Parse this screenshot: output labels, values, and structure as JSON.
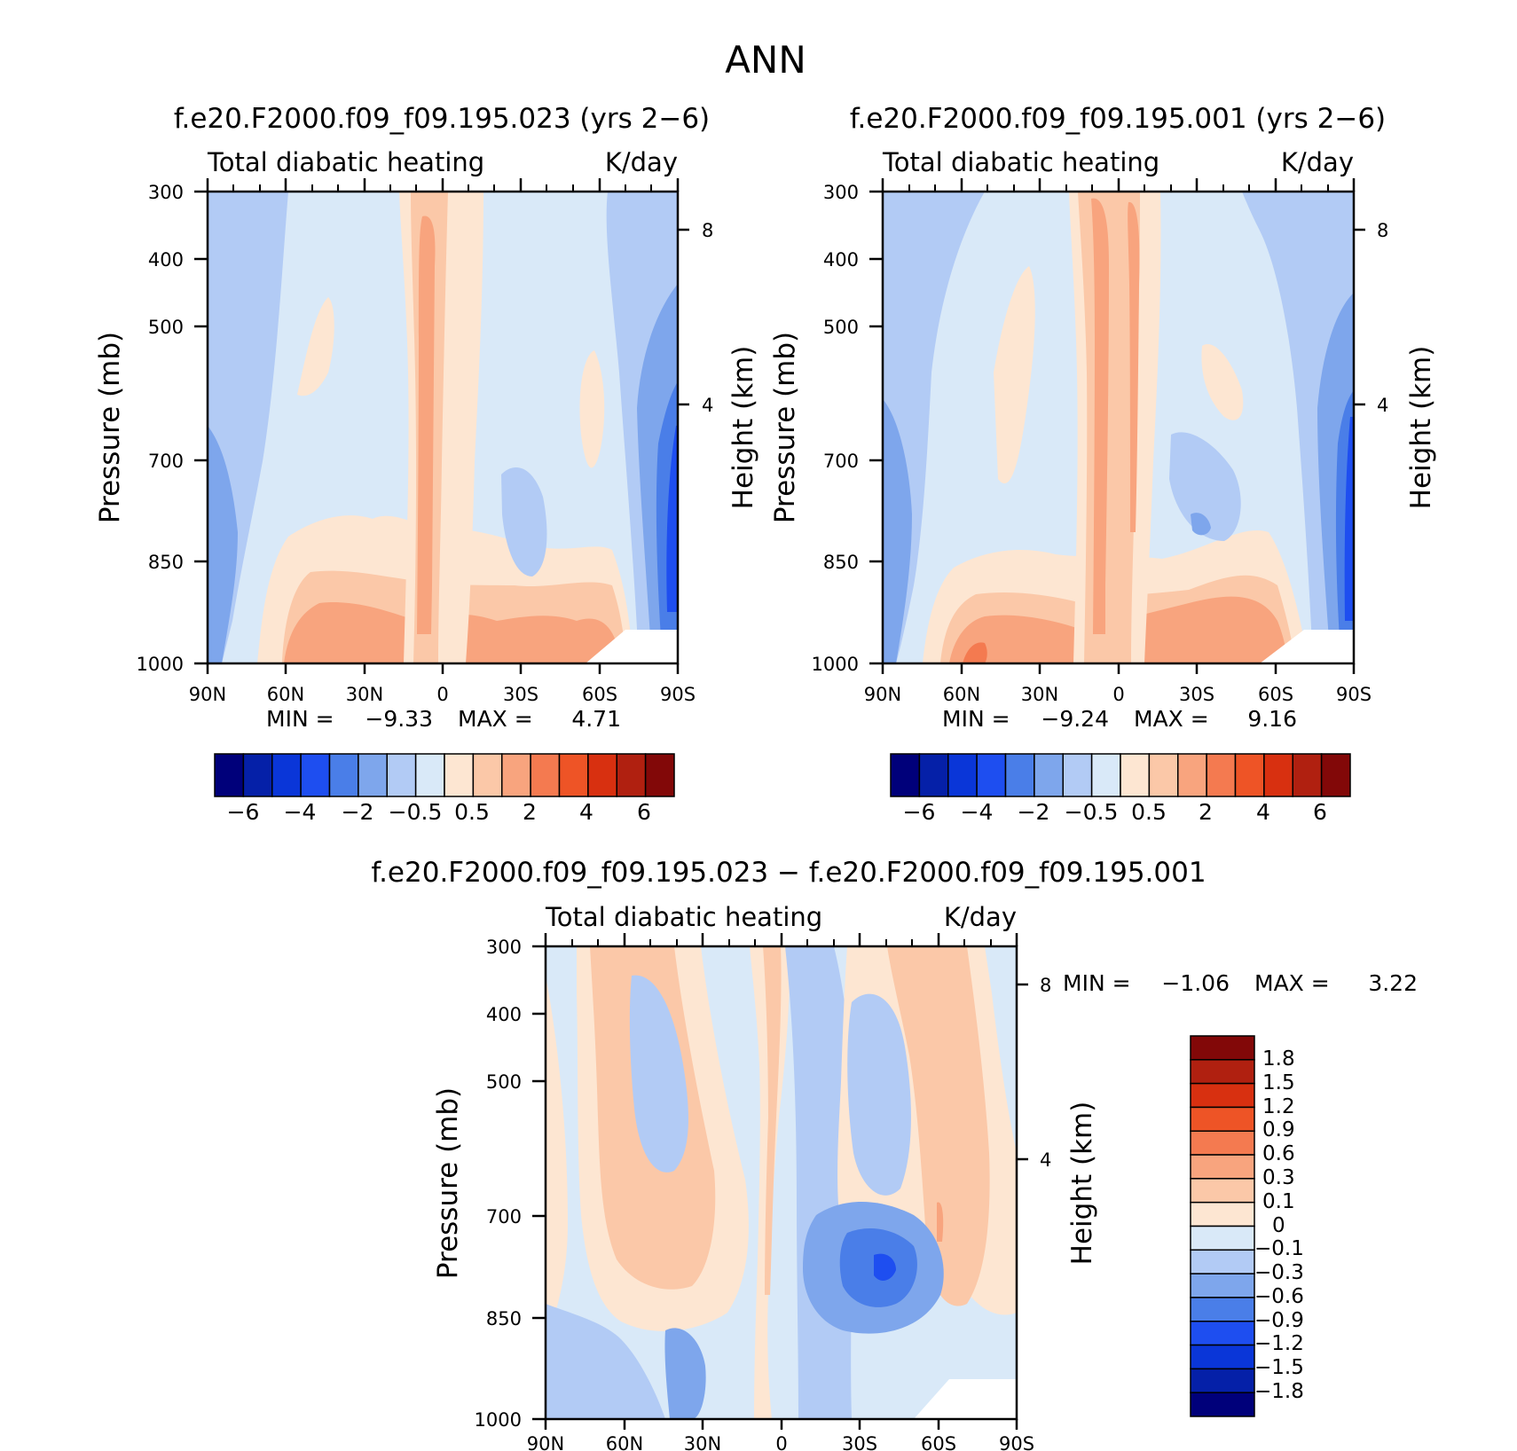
{
  "figure": {
    "title": "ANN"
  },
  "chart_data": [
    {
      "type": "heatmap",
      "title": "f.e20.F2000.f09_f09.195.023 (yrs 2-6)",
      "variable": "Total diabatic heating",
      "units": "K/day",
      "xlabel": "",
      "ylabel": "Pressure (mb)",
      "y2label": "Height (km)",
      "x_ticks": [
        "90N",
        "60N",
        "30N",
        "0",
        "30S",
        "60S",
        "90S"
      ],
      "y_ticks": [
        "300",
        "400",
        "500",
        "700",
        "850",
        "1000"
      ],
      "y2_ticks": [
        "8",
        "4"
      ],
      "min_label": "MIN =",
      "min_value": "-9.33",
      "max_label": "MAX =",
      "max_value": "4.71",
      "colorbar_labels": [
        "-6",
        "-4",
        "-2",
        "-0.5",
        "0.5",
        "2",
        "4",
        "6"
      ],
      "colorbar_colors": [
        "#00007a",
        "#0520a8",
        "#0a36d8",
        "#1e4ef0",
        "#4a7ee8",
        "#7ea6ec",
        "#b2cbf5",
        "#d9e9f8",
        "#fde6d2",
        "#fbc8a8",
        "#f8a47e",
        "#f47a50",
        "#ee5426",
        "#d83010",
        "#b02010",
        "#820808"
      ]
    },
    {
      "type": "heatmap",
      "title": "f.e20.F2000.f09_f09.195.001 (yrs 2-6)",
      "variable": "Total diabatic heating",
      "units": "K/day",
      "xlabel": "",
      "ylabel": "Pressure (mb)",
      "y2label": "Height (km)",
      "x_ticks": [
        "90N",
        "60N",
        "30N",
        "0",
        "30S",
        "60S",
        "90S"
      ],
      "y_ticks": [
        "300",
        "400",
        "500",
        "700",
        "850",
        "1000"
      ],
      "y2_ticks": [
        "8",
        "4"
      ],
      "min_label": "MIN =",
      "min_value": "-9.24",
      "max_label": "MAX =",
      "max_value": "9.16",
      "colorbar_labels": [
        "-6",
        "-4",
        "-2",
        "-0.5",
        "0.5",
        "2",
        "4",
        "6"
      ],
      "colorbar_colors": [
        "#00007a",
        "#0520a8",
        "#0a36d8",
        "#1e4ef0",
        "#4a7ee8",
        "#7ea6ec",
        "#b2cbf5",
        "#d9e9f8",
        "#fde6d2",
        "#fbc8a8",
        "#f8a47e",
        "#f47a50",
        "#ee5426",
        "#d83010",
        "#b02010",
        "#820808"
      ]
    },
    {
      "type": "heatmap",
      "title": "f.e20.F2000.f09_f09.195.023 - f.e20.F2000.f09_f09.195.001",
      "variable": "Total diabatic heating",
      "units": "K/day",
      "xlabel": "",
      "ylabel": "Pressure (mb)",
      "y2label": "Height (km)",
      "x_ticks": [
        "90N",
        "60N",
        "30N",
        "0",
        "30S",
        "60S",
        "90S"
      ],
      "y_ticks": [
        "300",
        "400",
        "500",
        "700",
        "850",
        "1000"
      ],
      "y2_ticks": [
        "8",
        "4"
      ],
      "min_label": "MIN =",
      "min_value": "-1.06",
      "max_label": "MAX =",
      "max_value": "3.22",
      "colorbar_labels": [
        "1.8",
        "1.5",
        "1.2",
        "0.9",
        "0.6",
        "0.3",
        "0.1",
        "0",
        "-0.1",
        "-0.3",
        "-0.6",
        "-0.9",
        "-1.2",
        "-1.5",
        "-1.8"
      ],
      "colorbar_colors": [
        "#820808",
        "#b02010",
        "#d83010",
        "#ee5426",
        "#f47a50",
        "#f8a47e",
        "#fbc8a8",
        "#fde6d2",
        "#d9e9f8",
        "#b2cbf5",
        "#7ea6ec",
        "#4a7ee8",
        "#1e4ef0",
        "#0a36d8",
        "#0520a8",
        "#00007a"
      ]
    }
  ]
}
